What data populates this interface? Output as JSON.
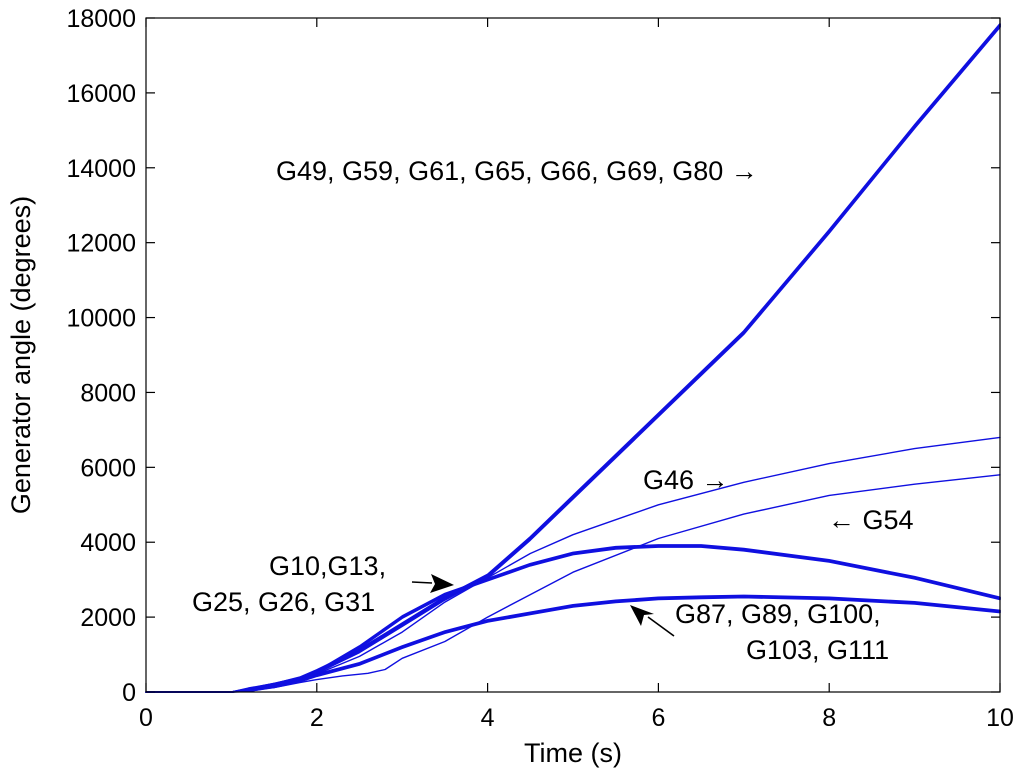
{
  "chart_data": {
    "type": "line",
    "title": "",
    "xlabel": "Time (s)",
    "ylabel": "Generator angle (degrees)",
    "xlim": [
      0,
      10
    ],
    "ylim": [
      0,
      18000
    ],
    "xticks": [
      0,
      2,
      4,
      6,
      8,
      10
    ],
    "yticks": [
      0,
      2000,
      4000,
      6000,
      8000,
      10000,
      12000,
      14000,
      16000,
      18000
    ],
    "grid": false,
    "line_color": "#1010e0",
    "series": [
      {
        "name": "G49, G59, G61, G65, G66, G69, G80",
        "bundle_count": 7,
        "x": [
          0,
          1.0,
          1.2,
          1.5,
          1.8,
          2.0,
          2.5,
          3.0,
          3.5,
          4.0,
          4.5,
          5.0,
          5.5,
          6.0,
          6.5,
          7.0,
          8.0,
          9.0,
          10.0
        ],
        "y": [
          0,
          0,
          60,
          180,
          350,
          550,
          1100,
          1800,
          2500,
          3100,
          4100,
          5200,
          6300,
          7400,
          8500,
          9600,
          12300,
          15100,
          17800
        ]
      },
      {
        "name": "G46",
        "bundle_count": 1,
        "x": [
          0,
          1.0,
          1.2,
          1.5,
          1.8,
          2.0,
          2.5,
          3.0,
          3.5,
          4.0,
          4.5,
          5.0,
          6.0,
          7.0,
          8.0,
          9.0,
          10.0
        ],
        "y": [
          0,
          0,
          50,
          160,
          300,
          480,
          950,
          1600,
          2400,
          3050,
          3700,
          4200,
          5000,
          5600,
          6100,
          6500,
          6800
        ]
      },
      {
        "name": "G54",
        "bundle_count": 1,
        "x": [
          0,
          1.0,
          1.2,
          1.5,
          1.8,
          2.0,
          2.3,
          2.6,
          2.8,
          3.0,
          3.5,
          4.0,
          4.5,
          5.0,
          6.0,
          7.0,
          8.0,
          9.0,
          10.0
        ],
        "y": [
          0,
          0,
          40,
          120,
          250,
          330,
          430,
          500,
          600,
          900,
          1350,
          2000,
          2600,
          3200,
          4100,
          4750,
          5250,
          5550,
          5800
        ]
      },
      {
        "name": "G10,G13, G25, G26, G31",
        "bundle_count": 5,
        "x": [
          0,
          1.0,
          1.2,
          1.5,
          1.8,
          2.0,
          2.5,
          3.0,
          3.5,
          4.0,
          4.5,
          5.0,
          5.5,
          6.0,
          6.5,
          7.0,
          8.0,
          9.0,
          10.0
        ],
        "y": [
          0,
          0,
          60,
          200,
          350,
          530,
          1200,
          2000,
          2600,
          3000,
          3400,
          3700,
          3850,
          3900,
          3900,
          3800,
          3500,
          3050,
          2500
        ]
      },
      {
        "name": "G87, G89, G100, G103, G111",
        "bundle_count": 5,
        "x": [
          0,
          1.0,
          1.2,
          1.5,
          1.8,
          2.0,
          2.5,
          3.0,
          3.5,
          4.0,
          4.5,
          5.0,
          5.5,
          6.0,
          6.5,
          7.0,
          8.0,
          9.0,
          10.0
        ],
        "y": [
          0,
          0,
          50,
          150,
          300,
          450,
          750,
          1200,
          1600,
          1900,
          2100,
          2300,
          2420,
          2500,
          2530,
          2550,
          2500,
          2380,
          2150
        ]
      }
    ],
    "annotations": [
      {
        "text": "G49, G59, G61, G65, G66, G69, G80 →"
      },
      {
        "text": "G46 →"
      },
      {
        "text": "← G54"
      },
      {
        "line1": "G10,G13,",
        "line2": "G25, G26, G31"
      },
      {
        "line1": "G87, G89, G100,",
        "line2": "G103, G111"
      }
    ]
  }
}
